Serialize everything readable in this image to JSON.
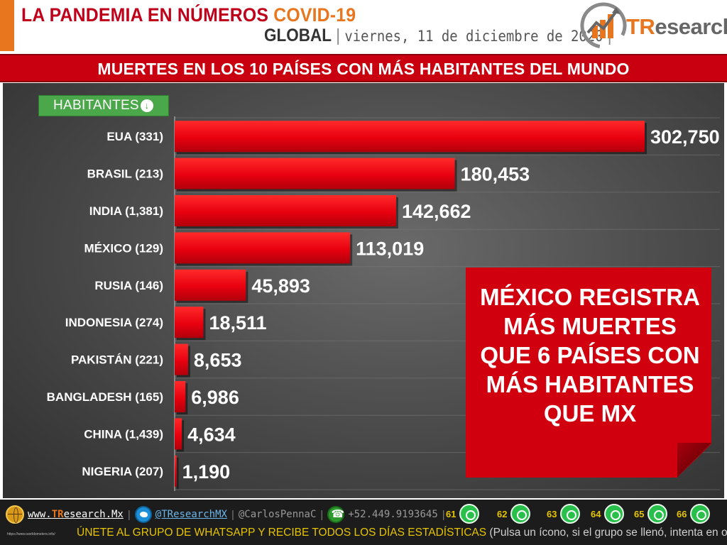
{
  "header": {
    "title": "LA PANDEMIA EN NÚMEROS",
    "title_accent": "COVID-19",
    "scope": "GLOBAL",
    "separator": "|",
    "date": "viernes, 11 de diciembre de 2020",
    "date_end": "|",
    "logo_tr": "TR",
    "logo_rest": "esearch"
  },
  "banner": "MUERTES EN LOS 10 PAÍSES CON MÁS HABITANTES DEL MUNDO",
  "habitantes_label": "HABITANTES",
  "habitantes_icon": "arrow-down-circle-icon",
  "chart_data": {
    "type": "bar",
    "orientation": "horizontal",
    "title": "",
    "xlabel": "",
    "ylabel": "",
    "categories": [
      "EUA (331)",
      "BRASIL (213)",
      "INDIA (1,381)",
      "MÉXICO (129)",
      "RUSIA (146)",
      "INDONESIA (274)",
      "PAKISTÁN (221)",
      "BANGLADESH (165)",
      "CHINA (1,439)",
      "NIGERIA (207)"
    ],
    "values": [
      302750,
      180453,
      142662,
      113019,
      45893,
      18511,
      8653,
      6986,
      4634,
      1190
    ],
    "value_labels": [
      "302,750",
      "180,453",
      "142,662",
      "113,019",
      "45,893",
      "18,511",
      "8,653",
      "6,986",
      "4,634",
      "1,190"
    ],
    "xlim": [
      0,
      302750
    ],
    "grid": true,
    "bar_color": "#e8000f",
    "background": "#4a4a4a"
  },
  "callout": {
    "lines": [
      "MÉXICO REGISTRA",
      "MÁS MUERTES",
      "QUE 6 PAÍSES CON",
      "MÁS HABITANTES",
      "QUE MX"
    ],
    "color": "#d0000f"
  },
  "footer": {
    "website_prefix": "www.",
    "website_brand": "TR",
    "website_suffix": "esearch.Mx",
    "twitter": "@TResearchMX",
    "personal": "@CarlosPennaC",
    "phone": "+52.449.9193645",
    "sep": "|",
    "whatsapp_groups": [
      "61",
      "62",
      "63",
      "64",
      "65",
      "66"
    ],
    "cta_main": "ÚNETE AL GRUPO DE WHATSAPP Y RECIBE TODOS LOS DÍAS ESTADÍSTICAS",
    "cta_note": "(Pulsa un ícono, si el grupo se llenó, intenta en otro)",
    "small_url": "https://www.worldometers.info/"
  },
  "colors": {
    "accent_orange": "#e8761e",
    "brand_red": "#c8000f",
    "whatsapp_green": "#28c04a",
    "footer_yellow": "#e6c400"
  }
}
